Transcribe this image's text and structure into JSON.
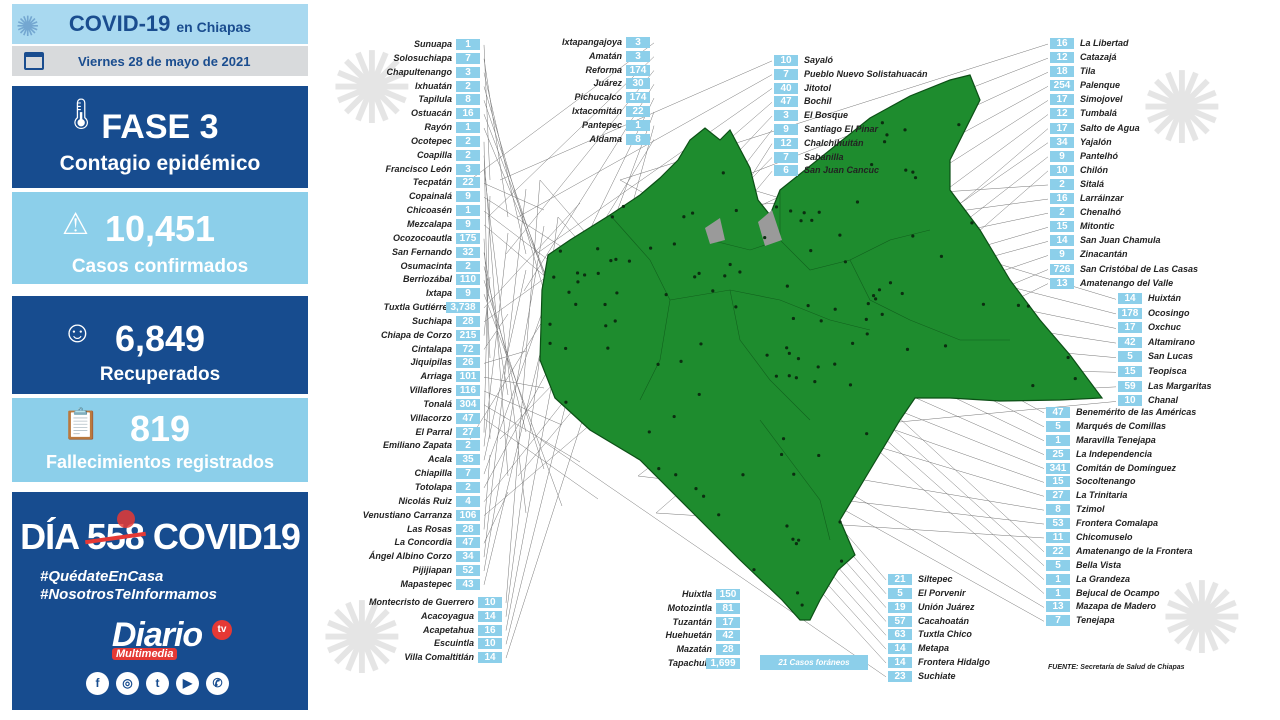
{
  "header": {
    "title": "COVID-19",
    "title_suffix": "en Chiapas",
    "date": "Viernes 28 de mayo de 2021"
  },
  "fase": {
    "title": "FASE 3",
    "subtitle": "Contagio epidémico"
  },
  "casos": {
    "value": "10,451",
    "label": "Casos confirmados"
  },
  "recuperados": {
    "value": "6,849",
    "label": "Recuperados"
  },
  "fallecimientos": {
    "value": "819",
    "label": "Fallecimientos registrados"
  },
  "dia": {
    "prefix": "DÍA",
    "number": "558",
    "suffix": "COVID19"
  },
  "hashtags": [
    "#QuédateEnCasa",
    "#NosotrosTeInformamos"
  ],
  "brand": {
    "name": "Diario",
    "sub": "Multimedia",
    "tv": "tv"
  },
  "social_icons": [
    "facebook-icon",
    "instagram-icon",
    "twitter-icon",
    "youtube-icon",
    "whatsapp-icon"
  ],
  "colors": {
    "navy": "#174c8f",
    "light_blue": "#8ccfea",
    "map_green": "#1e8c2e",
    "accent_red": "#e53935"
  },
  "map": {
    "left_col_1": [
      {
        "name": "Sunuapa",
        "count": "1"
      },
      {
        "name": "Solosuchiapa",
        "count": "7"
      },
      {
        "name": "Chapultenango",
        "count": "3"
      },
      {
        "name": "Ixhuatán",
        "count": "2"
      },
      {
        "name": "Tapilula",
        "count": "8"
      },
      {
        "name": "Ostuacán",
        "count": "16"
      },
      {
        "name": "Rayón",
        "count": "1"
      },
      {
        "name": "Ocotepec",
        "count": "2"
      },
      {
        "name": "Coapilla",
        "count": "2"
      },
      {
        "name": "Francisco León",
        "count": "3"
      },
      {
        "name": "Tecpatán",
        "count": "22"
      },
      {
        "name": "Copainalá",
        "count": "9"
      },
      {
        "name": "Chicoasén",
        "count": "1"
      },
      {
        "name": "Mezcalapa",
        "count": "9"
      },
      {
        "name": "Ocozocoautla",
        "count": "175"
      },
      {
        "name": "San Fernando",
        "count": "32"
      },
      {
        "name": "Osumacinta",
        "count": "2"
      },
      {
        "name": "Berriozábal",
        "count": "110"
      },
      {
        "name": "Ixtapa",
        "count": "9"
      },
      {
        "name": "Tuxtla Gutiérrez",
        "count": "3,738"
      },
      {
        "name": "Suchiapa",
        "count": "28"
      },
      {
        "name": "Chiapa de Corzo",
        "count": "215"
      },
      {
        "name": "Cintalapa",
        "count": "72"
      },
      {
        "name": "Jiquipilas",
        "count": "26"
      },
      {
        "name": "Arriaga",
        "count": "101"
      },
      {
        "name": "Villaflores",
        "count": "116"
      },
      {
        "name": "Tonalá",
        "count": "304"
      },
      {
        "name": "Villacorzo",
        "count": "47"
      },
      {
        "name": "El Parral",
        "count": "27"
      },
      {
        "name": "Emiliano Zapata",
        "count": "2"
      },
      {
        "name": "Acala",
        "count": "35"
      },
      {
        "name": "Chiapilla",
        "count": "7"
      },
      {
        "name": "Totolapa",
        "count": "2"
      },
      {
        "name": "Nicolás Ruiz",
        "count": "4"
      },
      {
        "name": "Venustiano Carranza",
        "count": "106"
      },
      {
        "name": "Las Rosas",
        "count": "28"
      },
      {
        "name": "La Concordia",
        "count": "47"
      },
      {
        "name": "Ángel Albino Corzo",
        "count": "34"
      },
      {
        "name": "Pijijiapan",
        "count": "52"
      },
      {
        "name": "Mapastepec",
        "count": "43"
      }
    ],
    "left_col_bottom": [
      {
        "name": "Montecristo de Guerrero",
        "count": "10"
      },
      {
        "name": "Acacoyagua",
        "count": "14"
      },
      {
        "name": "Acapetahua",
        "count": "16"
      },
      {
        "name": "Escuintla",
        "count": "10"
      },
      {
        "name": "Villa Comaltitlán",
        "count": "14"
      }
    ],
    "top_mid": [
      {
        "name": "Ixtapangajoya",
        "count": "3"
      },
      {
        "name": "Amatán",
        "count": "3"
      },
      {
        "name": "Reforma",
        "count": "174"
      },
      {
        "name": "Juárez",
        "count": "30"
      },
      {
        "name": "Pichucalco",
        "count": "174"
      },
      {
        "name": "Ixtacomitán",
        "count": "22"
      },
      {
        "name": "Pantepec",
        "count": "1"
      },
      {
        "name": "Aldama",
        "count": "8"
      }
    ],
    "top_center": [
      {
        "name": "Sayaló",
        "count": "10"
      },
      {
        "name": "Pueblo Nuevo Solistahuacán",
        "count": "7"
      },
      {
        "name": "Jitotol",
        "count": "40"
      },
      {
        "name": "Bochil",
        "count": "47"
      },
      {
        "name": "El Bosque",
        "count": "3"
      },
      {
        "name": "Santiago El Pinar",
        "count": "9"
      },
      {
        "name": "Chalchihuitán",
        "count": "12"
      },
      {
        "name": "Sabanilla",
        "count": "7"
      },
      {
        "name": "San Juan Cancuc",
        "count": "6"
      }
    ],
    "bottom_mid": [
      {
        "name": "Huixtla",
        "count": "150"
      },
      {
        "name": "Motozintla",
        "count": "81"
      },
      {
        "name": "Tuzantán",
        "count": "17"
      },
      {
        "name": "Huehuetán",
        "count": "42"
      },
      {
        "name": "Mazatán",
        "count": "28"
      },
      {
        "name": "Tapachula",
        "count": "1,699"
      }
    ],
    "bottom_center": [
      {
        "name": "Siltepec",
        "count": "21"
      },
      {
        "name": "El Porvenir",
        "count": "5"
      },
      {
        "name": "Unión Juárez",
        "count": "19"
      },
      {
        "name": "Cacahoatán",
        "count": "57"
      },
      {
        "name": "Tuxtla Chico",
        "count": "63"
      },
      {
        "name": "Metapa",
        "count": "14"
      },
      {
        "name": "Frontera Hidalgo",
        "count": "14"
      },
      {
        "name": "Suchiate",
        "count": "23"
      }
    ],
    "right_top": [
      {
        "name": "La Libertad",
        "count": "16"
      },
      {
        "name": "Catazajá",
        "count": "12"
      },
      {
        "name": "Tila",
        "count": "18"
      },
      {
        "name": "Palenque",
        "count": "254"
      },
      {
        "name": "Simojovel",
        "count": "17"
      },
      {
        "name": "Tumbalá",
        "count": "12"
      },
      {
        "name": "Salto de Agua",
        "count": "17"
      },
      {
        "name": "Yajalón",
        "count": "34"
      },
      {
        "name": "Pantelhó",
        "count": "9"
      },
      {
        "name": "Chilón",
        "count": "10"
      },
      {
        "name": "Sitalá",
        "count": "2"
      },
      {
        "name": "Larráinzar",
        "count": "16"
      },
      {
        "name": "Chenalhó",
        "count": "2"
      },
      {
        "name": "Mitontic",
        "count": "15"
      },
      {
        "name": "San Juan Chamula",
        "count": "14"
      },
      {
        "name": "Zinacantán",
        "count": "9"
      },
      {
        "name": "San Cristóbal de Las Casas",
        "count": "726"
      },
      {
        "name": "Amatenango del Valle",
        "count": "13"
      }
    ],
    "right_mid": [
      {
        "name": "Huixtán",
        "count": "14"
      },
      {
        "name": "Ocosingo",
        "count": "178"
      },
      {
        "name": "Oxchuc",
        "count": "17"
      },
      {
        "name": "Altamirano",
        "count": "42"
      },
      {
        "name": "San Lucas",
        "count": "5"
      },
      {
        "name": "Teopisca",
        "count": "15"
      },
      {
        "name": "Las Margaritas",
        "count": "59"
      },
      {
        "name": "Chanal",
        "count": "10"
      }
    ],
    "right_bottom": [
      {
        "name": "Benemérito de las Américas",
        "count": "47"
      },
      {
        "name": "Marqués de Comillas",
        "count": "5"
      },
      {
        "name": "Maravilla Tenejapa",
        "count": "1"
      },
      {
        "name": "La Independencia",
        "count": "25"
      },
      {
        "name": "Comitán de Domínguez",
        "count": "341"
      },
      {
        "name": "Socoltenango",
        "count": "15"
      },
      {
        "name": "La Trinitaria",
        "count": "27"
      },
      {
        "name": "Tzimol",
        "count": "8"
      },
      {
        "name": "Frontera Comalapa",
        "count": "53"
      },
      {
        "name": "Chicomuselo",
        "count": "11"
      },
      {
        "name": "Amatenango de la Frontera",
        "count": "22"
      },
      {
        "name": "Bella Vista",
        "count": "5"
      },
      {
        "name": "La Grandeza",
        "count": "1"
      },
      {
        "name": "Bejucal de Ocampo",
        "count": "1"
      },
      {
        "name": "Mazapa de Madero",
        "count": "13"
      },
      {
        "name": "Tenejapa",
        "count": "7"
      }
    ],
    "foraneos": "21 Casos foráneos",
    "fuente": "FUENTE: Secretaría de Salud de Chiapas"
  }
}
